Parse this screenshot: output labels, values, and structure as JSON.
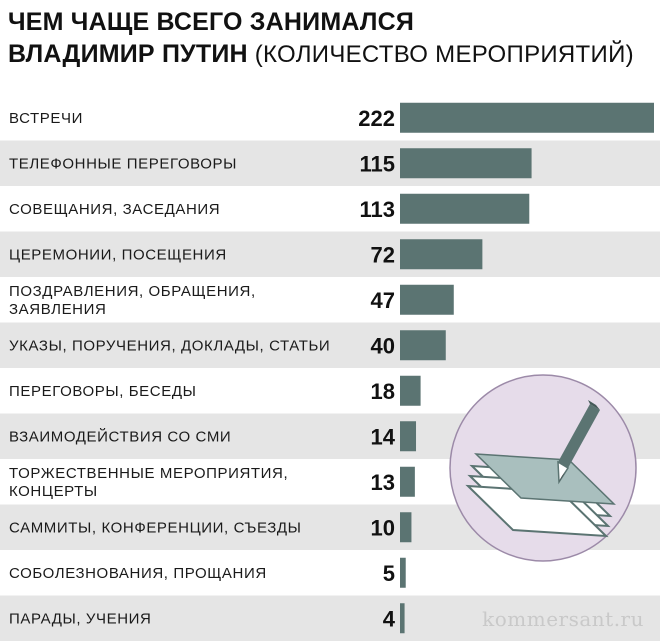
{
  "title": {
    "bold_line1": "ЧЕМ ЧАЩЕ ВСЕГО ЗАНИМАЛСЯ",
    "bold_line2": "ВЛАДИМИР ПУТИН",
    "light": "(КОЛИЧЕСТВО МЕРОПРИЯТИЙ)"
  },
  "chart_data": {
    "type": "bar",
    "orientation": "horizontal",
    "categories": [
      [
        "ВСТРЕЧИ"
      ],
      [
        "ТЕЛЕФОННЫЕ ПЕРЕГОВОРЫ"
      ],
      [
        "СОВЕЩАНИЯ, ЗАСЕДАНИЯ"
      ],
      [
        "ЦЕРЕМОНИИ, ПОСЕЩЕНИЯ"
      ],
      [
        "ПОЗДРАВЛЕНИЯ, ОБРАЩЕНИЯ,",
        "ЗАЯВЛЕНИЯ"
      ],
      [
        "УКАЗЫ, ПОРУЧЕНИЯ, ДОКЛАДЫ, СТАТЬИ"
      ],
      [
        "ПЕРЕГОВОРЫ, БЕСЕДЫ"
      ],
      [
        "ВЗАИМОДЕЙСТВИЯ СО СМИ"
      ],
      [
        "ТОРЖЕСТВЕННЫЕ МЕРОПРИЯТИЯ,",
        "КОНЦЕРТЫ"
      ],
      [
        "САММИТЫ, КОНФЕРЕНЦИИ, СЪЕЗДЫ"
      ],
      [
        "СОБОЛЕЗНОВАНИЯ, ПРОЩАНИЯ"
      ],
      [
        "ПАРАДЫ, УЧЕНИЯ"
      ]
    ],
    "values": [
      222,
      115,
      113,
      72,
      47,
      40,
      18,
      14,
      13,
      10,
      5,
      4
    ],
    "xlim": [
      0,
      222
    ],
    "grid": false,
    "bar_color": "#5b7472",
    "stripe_color": "#e5e5e5"
  },
  "illustration": {
    "icon": "pen-and-paper-icon",
    "circle_fill": "#e6dcea",
    "circle_stroke": "#9c8aa8"
  },
  "watermark": "kommersant.ru"
}
